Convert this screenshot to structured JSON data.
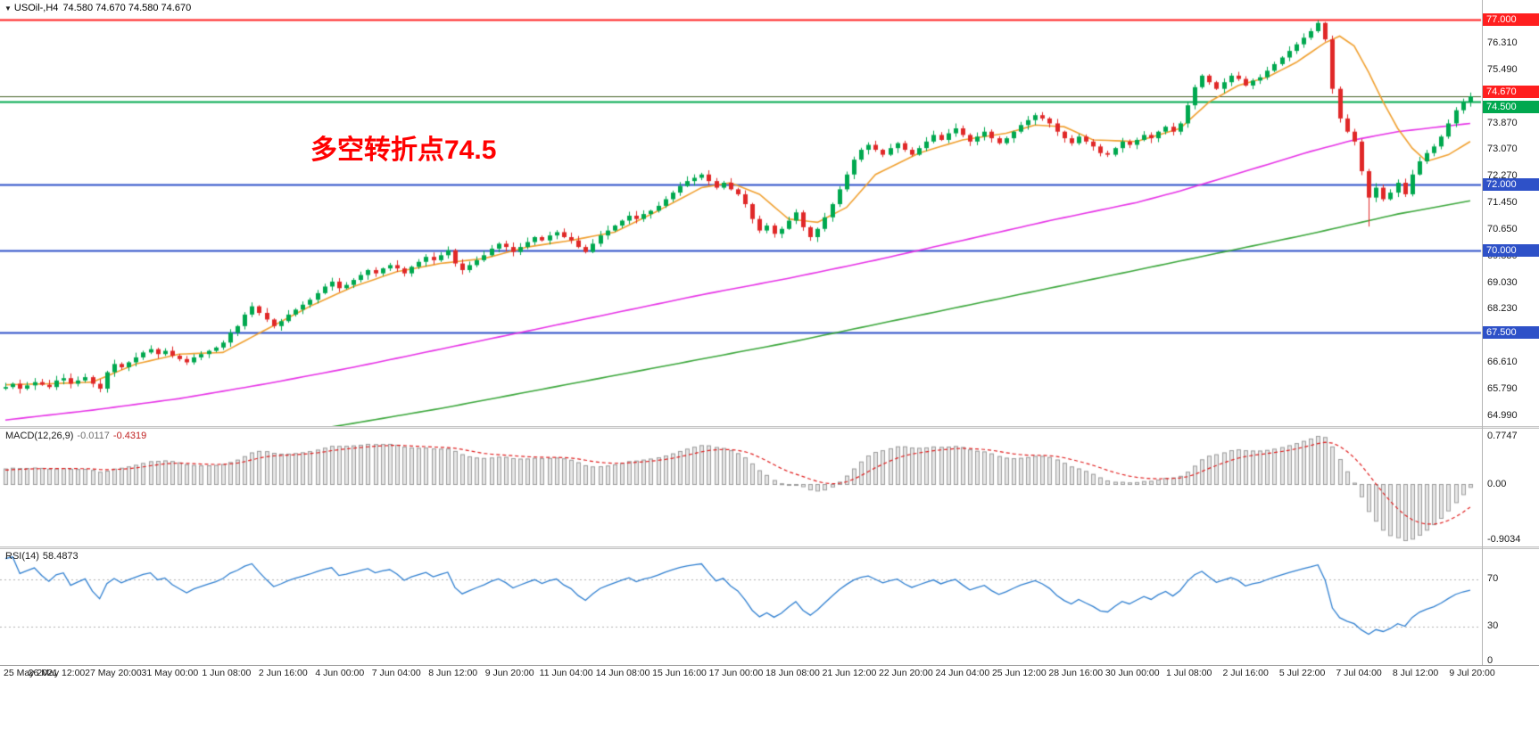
{
  "header": {
    "collapse_icon": "▼",
    "symbol": "USOil-,H4",
    "ohlc": "74.580 74.670 74.580 74.670"
  },
  "annotation": {
    "text": "多空转折点74.5",
    "color": "#ff0000"
  },
  "chart_data": {
    "type": "candlestick",
    "symbol": "USOil",
    "timeframe": "H4",
    "title": "USOil-,H4 74.580 74.670 74.580 74.670",
    "ylim": [
      64.66,
      77.6
    ],
    "grid": false,
    "time_labels": [
      "25 May 2021",
      "26 May 12:00",
      "27 May 20:00",
      "31 May 00:00",
      "1 Jun 08:00",
      "2 Jun 16:00",
      "4 Jun 00:00",
      "7 Jun 04:00",
      "8 Jun 12:00",
      "9 Jun 20:00",
      "11 Jun 04:00",
      "14 Jun 08:00",
      "15 Jun 16:00",
      "17 Jun 00:00",
      "18 Jun 08:00",
      "21 Jun 12:00",
      "22 Jun 20:00",
      "24 Jun 04:00",
      "25 Jun 12:00",
      "28 Jun 16:00",
      "30 Jun 00:00",
      "1 Jul 08:00",
      "2 Jul 16:00",
      "5 Jul 22:00",
      "7 Jul 04:00",
      "8 Jul 12:00",
      "9 Jul 20:00"
    ],
    "price_axis": {
      "ticks": [
        76.31,
        75.49,
        73.87,
        73.07,
        72.27,
        71.45,
        70.65,
        69.83,
        69.03,
        68.23,
        66.61,
        65.79,
        64.99
      ],
      "tags": [
        {
          "price": 77.0,
          "label": "77.000",
          "bg": "#ff1f1f",
          "dy": -7
        },
        {
          "price": 74.67,
          "label": "74.670",
          "bg": "#ff1f1f",
          "dy": -12
        },
        {
          "price": 74.5,
          "label": "74.500",
          "bg": "#00a84f",
          "dy": -1
        },
        {
          "price": 72.0,
          "label": "72.000",
          "bg": "#2e51c8",
          "dy": -7
        },
        {
          "price": 70.0,
          "label": "70.000",
          "bg": "#2e51c8",
          "dy": -7
        },
        {
          "price": 67.5,
          "label": "67.500",
          "bg": "#2e51c8",
          "dy": -7
        }
      ]
    },
    "hlines": [
      {
        "price": 77.0,
        "color": "#ff1f1f",
        "width": 2
      },
      {
        "price": 74.67,
        "color": "#405f20",
        "width": 1
      },
      {
        "price": 74.5,
        "color": "#00a84f",
        "width": 2
      },
      {
        "price": 72.0,
        "color": "#2e51c8",
        "width": 2
      },
      {
        "price": 70.0,
        "color": "#2e51c8",
        "width": 2
      },
      {
        "price": 67.5,
        "color": "#2e51c8",
        "width": 2
      }
    ],
    "candles": {
      "up_color": "#00a84f",
      "down_color": "#e02828",
      "first_open": 65.8,
      "prehistory_closes": [
        64.6,
        64.65,
        64.7,
        64.72,
        64.78,
        64.85,
        64.8,
        64.9,
        64.95,
        65.0,
        65.05,
        64.98,
        65.1,
        65.15,
        65.2,
        65.18,
        65.25,
        65.3,
        65.35,
        65.3,
        65.4,
        65.45,
        65.5,
        65.48,
        65.55,
        65.6,
        65.65,
        65.62,
        65.7,
        65.78
      ],
      "closes": [
        65.85,
        65.95,
        65.8,
        65.9,
        66.0,
        65.92,
        65.85,
        66.05,
        66.12,
        65.95,
        66.05,
        66.15,
        65.95,
        65.8,
        66.3,
        66.55,
        66.45,
        66.6,
        66.75,
        66.9,
        67.0,
        66.85,
        66.95,
        66.8,
        66.7,
        66.6,
        66.75,
        66.85,
        66.95,
        67.05,
        67.2,
        67.5,
        67.7,
        68.05,
        68.3,
        68.1,
        67.9,
        67.7,
        67.85,
        68.05,
        68.2,
        68.35,
        68.5,
        68.7,
        68.9,
        69.05,
        68.85,
        68.95,
        69.1,
        69.25,
        69.4,
        69.3,
        69.45,
        69.55,
        69.45,
        69.3,
        69.5,
        69.65,
        69.8,
        69.7,
        69.85,
        70.0,
        69.6,
        69.4,
        69.55,
        69.7,
        69.85,
        70.05,
        70.2,
        70.1,
        69.95,
        70.1,
        70.25,
        70.4,
        70.3,
        70.45,
        70.55,
        70.4,
        70.3,
        70.1,
        69.95,
        70.2,
        70.45,
        70.6,
        70.75,
        70.9,
        71.05,
        70.95,
        71.1,
        71.2,
        71.35,
        71.55,
        71.75,
        71.95,
        72.1,
        72.2,
        72.3,
        72.1,
        71.9,
        72.05,
        71.85,
        71.7,
        71.4,
        70.95,
        70.6,
        70.75,
        70.5,
        70.65,
        70.9,
        71.15,
        70.7,
        70.4,
        70.65,
        71.0,
        71.4,
        71.85,
        72.3,
        72.75,
        73.05,
        73.2,
        73.05,
        72.9,
        73.1,
        73.25,
        73.05,
        72.9,
        73.1,
        73.3,
        73.5,
        73.35,
        73.55,
        73.7,
        73.5,
        73.3,
        73.45,
        73.6,
        73.4,
        73.25,
        73.4,
        73.6,
        73.8,
        73.95,
        74.1,
        74.0,
        73.85,
        73.6,
        73.4,
        73.25,
        73.45,
        73.3,
        73.15,
        72.95,
        72.9,
        73.1,
        73.3,
        73.2,
        73.35,
        73.5,
        73.4,
        73.6,
        73.75,
        73.6,
        73.85,
        74.4,
        74.95,
        75.3,
        75.1,
        74.9,
        75.1,
        75.3,
        75.2,
        75.0,
        75.15,
        75.25,
        75.45,
        75.65,
        75.85,
        76.05,
        76.25,
        76.45,
        76.65,
        76.9,
        76.4,
        74.9,
        74.0,
        73.6,
        73.3,
        72.4,
        71.6,
        71.9,
        71.55,
        71.75,
        72.05,
        71.7,
        72.3,
        72.7,
        72.95,
        73.15,
        73.45,
        73.85,
        74.25,
        74.5,
        74.67
      ],
      "wick_overrides": {
        "highs": {
          "181": 76.98
        },
        "lows": {
          "188": 70.72
        }
      }
    },
    "moving_averages": [
      {
        "name": "ma-slow",
        "color": "#3aa63a",
        "anchors": [
          [
            0,
            63.3
          ],
          [
            24,
            63.9
          ],
          [
            48,
            64.75
          ],
          [
            60,
            65.2
          ],
          [
            72,
            65.7
          ],
          [
            84,
            66.2
          ],
          [
            96,
            66.7
          ],
          [
            108,
            67.2
          ],
          [
            120,
            67.75
          ],
          [
            132,
            68.3
          ],
          [
            144,
            68.85
          ],
          [
            156,
            69.4
          ],
          [
            168,
            69.95
          ],
          [
            180,
            70.5
          ],
          [
            192,
            71.1
          ],
          [
            202,
            71.5
          ]
        ]
      },
      {
        "name": "ma-mid",
        "color": "#e632e6",
        "anchors": [
          [
            0,
            64.85
          ],
          [
            12,
            65.15
          ],
          [
            24,
            65.5
          ],
          [
            36,
            65.95
          ],
          [
            48,
            66.45
          ],
          [
            60,
            67.0
          ],
          [
            72,
            67.55
          ],
          [
            84,
            68.1
          ],
          [
            96,
            68.65
          ],
          [
            108,
            69.15
          ],
          [
            120,
            69.7
          ],
          [
            132,
            70.3
          ],
          [
            144,
            70.9
          ],
          [
            156,
            71.45
          ],
          [
            162,
            71.8
          ],
          [
            168,
            72.2
          ],
          [
            174,
            72.6
          ],
          [
            180,
            73.0
          ],
          [
            186,
            73.35
          ],
          [
            192,
            73.6
          ],
          [
            202,
            73.85
          ]
        ]
      },
      {
        "name": "ma-fast",
        "color": "#f0a030",
        "anchors": [
          [
            0,
            65.92
          ],
          [
            6,
            65.95
          ],
          [
            12,
            66.0
          ],
          [
            18,
            66.55
          ],
          [
            24,
            66.85
          ],
          [
            30,
            66.9
          ],
          [
            36,
            67.6
          ],
          [
            42,
            68.3
          ],
          [
            48,
            68.9
          ],
          [
            54,
            69.35
          ],
          [
            60,
            69.6
          ],
          [
            66,
            69.75
          ],
          [
            72,
            70.1
          ],
          [
            78,
            70.3
          ],
          [
            84,
            70.55
          ],
          [
            90,
            71.2
          ],
          [
            96,
            71.9
          ],
          [
            100,
            72.05
          ],
          [
            104,
            71.7
          ],
          [
            108,
            70.95
          ],
          [
            112,
            70.85
          ],
          [
            116,
            71.3
          ],
          [
            120,
            72.3
          ],
          [
            126,
            72.95
          ],
          [
            132,
            73.35
          ],
          [
            138,
            73.55
          ],
          [
            142,
            73.8
          ],
          [
            146,
            73.75
          ],
          [
            150,
            73.35
          ],
          [
            156,
            73.3
          ],
          [
            162,
            73.7
          ],
          [
            166,
            74.5
          ],
          [
            170,
            75.0
          ],
          [
            174,
            75.25
          ],
          [
            178,
            75.7
          ],
          [
            182,
            76.3
          ],
          [
            184,
            76.5
          ],
          [
            186,
            76.2
          ],
          [
            188,
            75.4
          ],
          [
            190,
            74.5
          ],
          [
            192,
            73.7
          ],
          [
            194,
            73.1
          ],
          [
            196,
            72.7
          ],
          [
            199,
            72.9
          ],
          [
            202,
            73.3
          ]
        ]
      }
    ],
    "macd": {
      "title": "MACD(12,26,9)",
      "main_value": "-0.0117",
      "signal_value": "-0.4319",
      "params": [
        12,
        26,
        9
      ],
      "histogram_color": "#e6e6e6",
      "histogram_border": "#9c9c9c",
      "signal_color": "#e02020",
      "axis_labels": [
        {
          "text": "0.7747",
          "y": 2
        },
        {
          "text": "0.00",
          "y": 56
        },
        {
          "text": "-0.9034",
          "y": 118
        }
      ]
    },
    "rsi": {
      "title": "RSI(14)",
      "value": "58.4873",
      "period": 14,
      "line_color": "#2f7fd0",
      "level_color": "#b0b0b0",
      "levels": [
        70,
        30
      ],
      "axis_labels": [
        {
          "text": "70",
          "y": 27
        },
        {
          "text": "30",
          "y": 80
        },
        {
          "text": "0",
          "y": 119
        }
      ]
    }
  }
}
